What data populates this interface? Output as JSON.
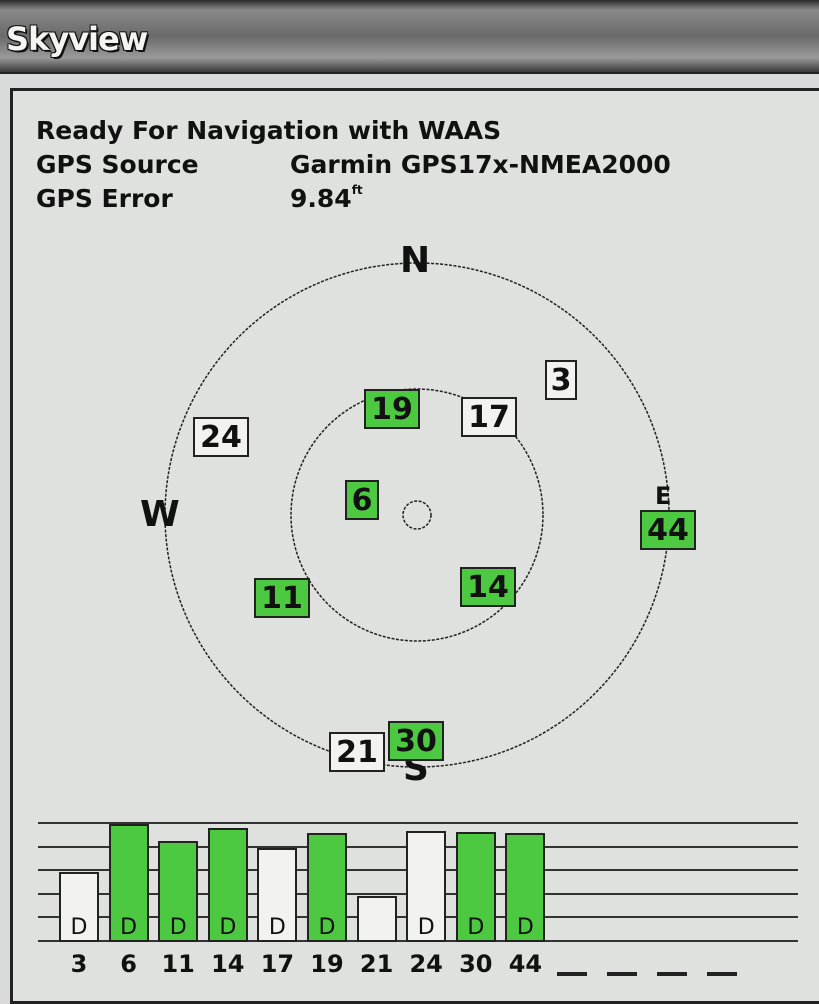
{
  "window": {
    "title": "Skyview"
  },
  "status": {
    "message": "Ready For Navigation with WAAS",
    "source_label": "GPS Source",
    "source_value": "Garmin GPS17x-NMEA2000",
    "error_label": "GPS Error",
    "error_value": "9.84",
    "error_unit": "ft"
  },
  "compass": {
    "north": "N",
    "south": "S",
    "east": "E",
    "west": "W"
  },
  "colors": {
    "used": "#4cc940",
    "unused": "#f2f3f0"
  },
  "satellites": [
    {
      "id": "3",
      "used": false
    },
    {
      "id": "19",
      "used": true
    },
    {
      "id": "17",
      "used": false
    },
    {
      "id": "24",
      "used": false
    },
    {
      "id": "6",
      "used": true
    },
    {
      "id": "44",
      "used": true
    },
    {
      "id": "11",
      "used": true
    },
    {
      "id": "14",
      "used": true
    },
    {
      "id": "21",
      "used": false
    },
    {
      "id": "30",
      "used": true
    }
  ],
  "signal_bars": [
    {
      "id": "3",
      "strength": 0.59,
      "used": false,
      "flag": "D"
    },
    {
      "id": "6",
      "strength": 1.0,
      "used": true,
      "flag": "D"
    },
    {
      "id": "11",
      "strength": 0.86,
      "used": true,
      "flag": "D"
    },
    {
      "id": "14",
      "strength": 0.97,
      "used": true,
      "flag": "D"
    },
    {
      "id": "17",
      "strength": 0.8,
      "used": false,
      "flag": "D"
    },
    {
      "id": "19",
      "strength": 0.92,
      "used": true,
      "flag": "D"
    },
    {
      "id": "21",
      "strength": 0.39,
      "used": false,
      "flag": ""
    },
    {
      "id": "24",
      "strength": 0.94,
      "used": false,
      "flag": "D"
    },
    {
      "id": "30",
      "strength": 0.93,
      "used": true,
      "flag": "D"
    },
    {
      "id": "44",
      "strength": 0.92,
      "used": true,
      "flag": "D"
    }
  ],
  "empty_slots": [
    "--",
    "--",
    "--",
    "--"
  ]
}
